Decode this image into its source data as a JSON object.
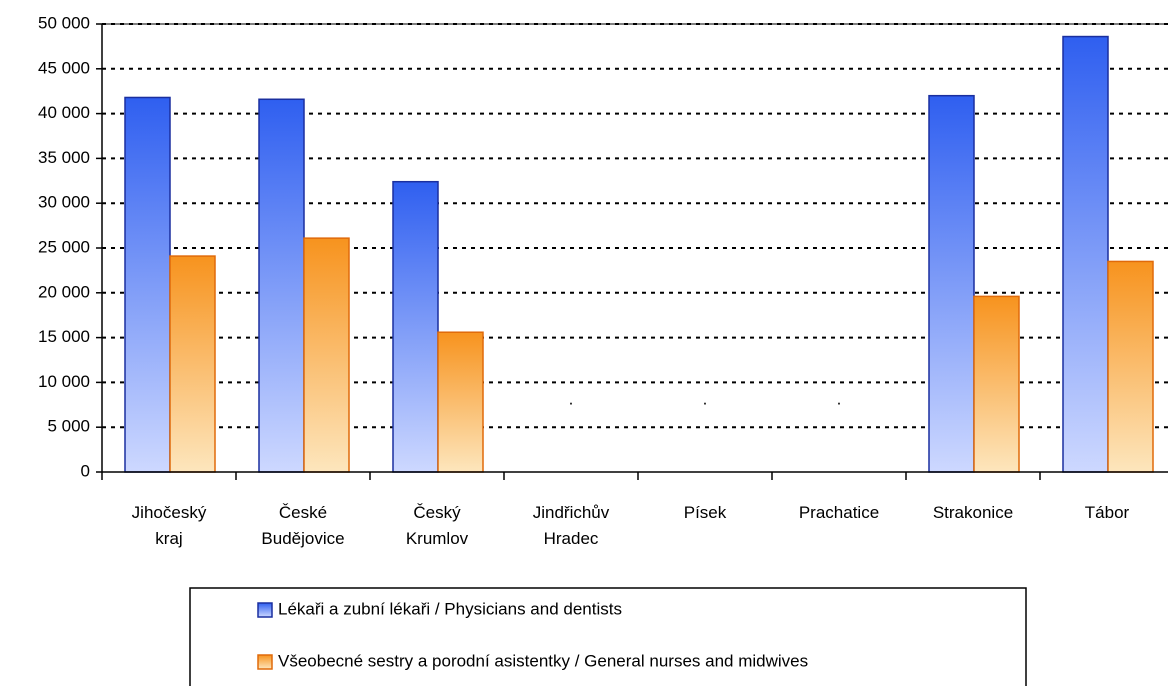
{
  "chart_data": {
    "type": "bar",
    "categories": [
      "Jihočeský kraj",
      "České Budějovice",
      "Český Krumlov",
      "Jindřichův Hradec",
      "Písek",
      "Prachatice",
      "Strakonice",
      "Tábor"
    ],
    "series": [
      {
        "name": "Lékaři a zubní lékaři / Physicians and dentists",
        "color": "#2f5ff0",
        "values": [
          41800,
          41600,
          32400,
          null,
          null,
          null,
          42000,
          48600
        ]
      },
      {
        "name": "Všeobecné sestry a porodní asistentky / General nurses and midwives",
        "color": "#f7931e",
        "values": [
          24100,
          26100,
          15600,
          null,
          null,
          null,
          19600,
          23500
        ]
      }
    ],
    "missing_labels": [
      null,
      null,
      null,
      ".",
      ".",
      ".",
      null,
      null
    ],
    "ylim": [
      0,
      50000
    ],
    "yticks": [
      0,
      {
        "value": 5000,
        "label": "5 000"
      },
      {
        "value": 10000,
        "label": "10 000"
      },
      {
        "value": 15000,
        "label": "15 000"
      },
      {
        "value": 20000,
        "label": "20 000"
      },
      {
        "value": 25000,
        "label": "25 000"
      },
      {
        "value": 30000,
        "label": "30 000"
      },
      {
        "value": 35000,
        "label": "35 000"
      },
      {
        "value": 40000,
        "label": "40 000"
      },
      {
        "value": 45000,
        "label": "45 000"
      },
      {
        "value": 50000,
        "label": "50 000"
      }
    ],
    "grid": true,
    "legend": "bottom"
  }
}
